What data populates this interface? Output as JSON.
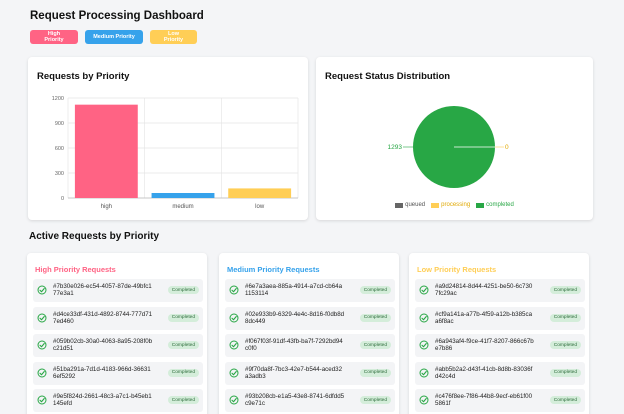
{
  "header": {
    "title": "Request Processing Dashboard"
  },
  "filters": [
    {
      "label": "High Priority",
      "color": "#ff6384"
    },
    {
      "label": "Medium Priority",
      "color": "#36a2eb"
    },
    {
      "label": "Low Priority",
      "color": "#ffce56"
    }
  ],
  "bar_card": {
    "title": "Requests by Priority"
  },
  "pie_card": {
    "title": "Request Status Distribution"
  },
  "chart_data": [
    {
      "type": "bar",
      "title": "Requests by Priority",
      "categories": [
        "high",
        "medium",
        "low"
      ],
      "values": [
        1120,
        60,
        115
      ],
      "colors": [
        "#ff6384",
        "#36a2eb",
        "#ffce56"
      ],
      "ylim": [
        0,
        1200
      ],
      "yticks": [
        "0",
        "300",
        "600",
        "900",
        "1200"
      ],
      "grid": true
    },
    {
      "type": "pie",
      "title": "Request Status Distribution",
      "labels": [
        "queued",
        "processing",
        "completed"
      ],
      "values": [
        0,
        0,
        1293
      ],
      "colors": [
        "#666666",
        "#ffce56",
        "#28a745"
      ],
      "data_labels": {
        "completed": "1293",
        "processing": "0"
      },
      "legend": "bottom"
    }
  ],
  "active": {
    "title": "Active Requests by Priority",
    "columns": [
      {
        "title": "High Priority Requests",
        "items": [
          {
            "id": "#7b30e026-ec54-4057-87de-49bfc177e3a1",
            "status": "Completed"
          },
          {
            "id": "#d4ce33df-431d-4892-8744-777d717ed460",
            "status": "Completed"
          },
          {
            "id": "#059b02cb-30a0-4063-8a95-208f0bc21d51",
            "status": "Completed"
          },
          {
            "id": "#51ba291a-7d1d-4183-966d-366316ef5292",
            "status": "Completed"
          },
          {
            "id": "#9e5f824d-2661-48c3-a7c1-b45eb1145efd",
            "status": "Completed"
          }
        ]
      },
      {
        "title": "Medium Priority Requests",
        "items": [
          {
            "id": "#6e7a3aea-885a-4914-a7cd-cb64a1153114",
            "status": "Completed"
          },
          {
            "id": "#02e933b9-6329-4e4c-8d16-f0db8d8dc449",
            "status": "Completed"
          },
          {
            "id": "#f067f03f-91df-43fb-ba7f-7292bd94c0f0",
            "status": "Completed"
          },
          {
            "id": "#9f70da8f-7bc3-42e7-b544-aced32a3adb3",
            "status": "Completed"
          },
          {
            "id": "#93b208cb-e1a5-43e8-8741-6dfdd5c9e71c",
            "status": "Completed"
          }
        ]
      },
      {
        "title": "Low Priority Requests",
        "items": [
          {
            "id": "#a9d24814-8d44-4251-be50-6c7307fc29ac",
            "status": "Completed"
          },
          {
            "id": "#cf9a141a-a77b-4f59-a12b-b385caa6f8ac",
            "status": "Completed"
          },
          {
            "id": "#6a943af4-f9ce-41f7-8207-866c67be7b86",
            "status": "Completed"
          },
          {
            "id": "#abb5b2a2-d43f-41cb-8d8b-83036fd42c4d",
            "status": "Completed"
          },
          {
            "id": "#c476f8ee-7f86-44b8-9ecf-eb61f005861f",
            "status": "Completed"
          }
        ]
      }
    ]
  }
}
